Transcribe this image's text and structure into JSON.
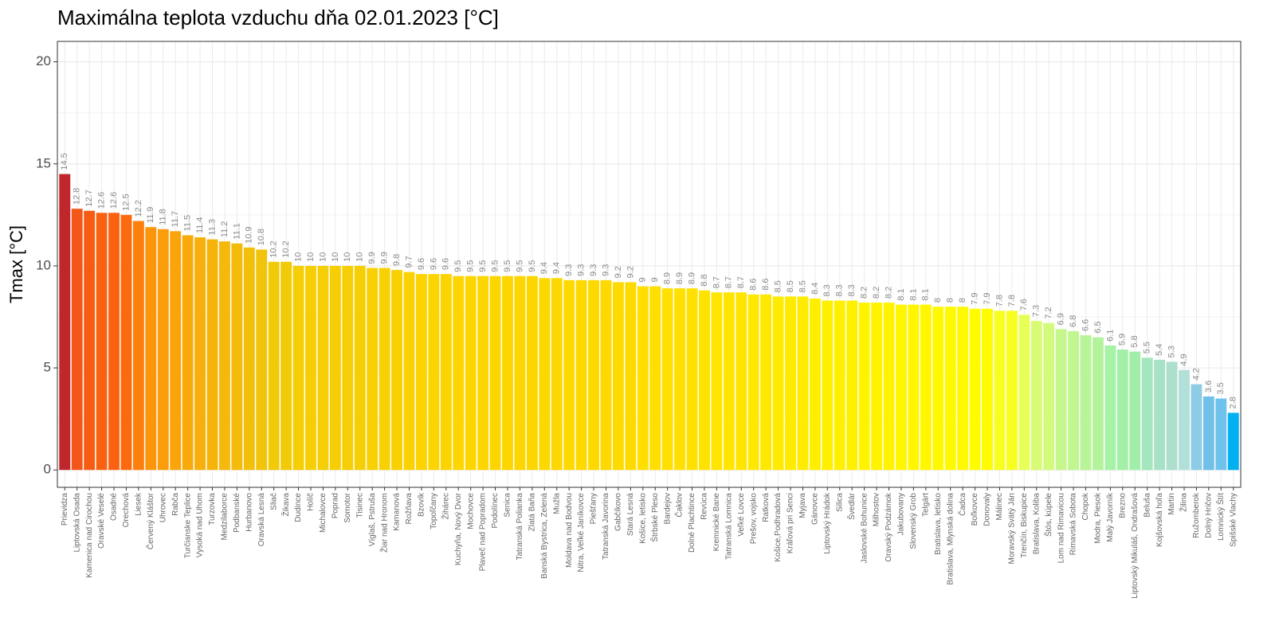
{
  "chart_data": {
    "type": "bar",
    "title": "Maximálna teplota vzduchu dňa 02.01.2023 [°C]",
    "y_label": "Tmax [°C]",
    "categories": [
      "Prievidza",
      "Liptovská Osada",
      "Kamenica nad Cirochou",
      "Oravské Veselé",
      "Osadné",
      "Orechová",
      "Liesek",
      "Červený Kláštor",
      "Uhrovec",
      "Rabča",
      "Turčianske Teplice",
      "Vysoká nad Uhom",
      "Turzovka",
      "Medzilaborce",
      "Podbanské",
      "Hurbanovo",
      "Oravská Lesná",
      "Sliač",
      "Žikava",
      "Dudince",
      "Holíč",
      "Michalovce",
      "Poprad",
      "Somotor",
      "Tisinec",
      "Víglaš, Pstruša",
      "Žiar nad Hronom",
      "Kamanová",
      "Rožňava",
      "Bzovík",
      "Topoľčany",
      "Žihárec",
      "Kuchyňa, Nový Dvor",
      "Mochovce",
      "Plaveč nad Popradom",
      "Podolínec",
      "Senica",
      "Tatranská Polianka",
      "Zlatá Baňa",
      "Banská Bystrica, Zelená",
      "Mužla",
      "Moldava nad Bodvou",
      "Nitra, Veľké Janíkovce",
      "Piešťany",
      "Tatranská Javorina",
      "Gabčíkovo",
      "Stará Lesná",
      "Košice, letisko",
      "Štrbské Pleso",
      "Bardejov",
      "Čaklov",
      "Dolné Plachtince",
      "Revúca",
      "Kremnické Bane",
      "Tatranská Lomnica",
      "Veľké Lovce",
      "Prešov, vojsko",
      "Ratková",
      "Košice,Podhradová",
      "Kráľová pri Senci",
      "Myjava",
      "Gánovce",
      "Liptovský Hrádok",
      "Silica",
      "Švedlár",
      "Jaslovské Bohunice",
      "Milhostov",
      "Oravský Podzámok",
      "Jakubovany",
      "Slovenský Grob",
      "Telgárt",
      "Bratislava, letisko",
      "Bratislava, Mlynská dolina",
      "Čadca",
      "Boľkovce",
      "Donovaly",
      "Málinec",
      "Moravský Svätý Ján",
      "Trenčín, Biskupice",
      "Bratislava, Koliba",
      "Štós, kúpele",
      "Lom nad Rimavicou",
      "Rimavská Sobota",
      "Chopok",
      "Modra, Piesok",
      "Malý Javorník",
      "Brezno",
      "Liptovský Mikuláš, Ondrašová",
      "Beluša",
      "Kojšovská hoľa",
      "Martin",
      "Žilina",
      "Ružomberok",
      "Dolný Hričov",
      "Lomnický Štít",
      "Spišské Vlachy"
    ],
    "values": [
      14.5,
      12.8,
      12.7,
      12.6,
      12.6,
      12.5,
      12.2,
      11.9,
      11.8,
      11.7,
      11.5,
      11.4,
      11.3,
      11.2,
      11.1,
      10.9,
      10.8,
      10.2,
      10.2,
      10,
      10,
      10,
      10,
      10,
      10,
      9.9,
      9.9,
      9.8,
      9.7,
      9.6,
      9.6,
      9.6,
      9.5,
      9.5,
      9.5,
      9.5,
      9.5,
      9.5,
      9.5,
      9.4,
      9.4,
      9.3,
      9.3,
      9.3,
      9.3,
      9.2,
      9.2,
      9,
      9,
      8.9,
      8.9,
      8.9,
      8.8,
      8.7,
      8.7,
      8.7,
      8.6,
      8.6,
      8.5,
      8.5,
      8.5,
      8.4,
      8.3,
      8.3,
      8.3,
      8.2,
      8.2,
      8.2,
      8.1,
      8.1,
      8.1,
      8,
      8,
      8,
      7.9,
      7.9,
      7.8,
      7.8,
      7.6,
      7.3,
      7.2,
      6.9,
      6.8,
      6.6,
      6.5,
      6.1,
      5.9,
      5.8,
      5.5,
      5.4,
      5.3,
      4.9,
      4.2,
      3.6,
      3.5,
      2.8
    ],
    "colors": [
      "#c0272d",
      "#f4561a",
      "#f75c15",
      "#fa6212",
      "#fa6212",
      "#fc6a0f",
      "#fd7f0c",
      "#fb950a",
      "#fb9c0a",
      "#faa30a",
      "#f8aa0b",
      "#f7b00b",
      "#f6b40b",
      "#f5b80b",
      "#f4bb0b",
      "#f2c00b",
      "#f1c30b",
      "#f3ca07",
      "#f3ca07",
      "#f6ce05",
      "#f6ce05",
      "#f6ce05",
      "#f6ce05",
      "#f6ce05",
      "#f6ce05",
      "#f8d004",
      "#f8d004",
      "#f9d103",
      "#fad203",
      "#fbd402",
      "#fbd402",
      "#fbd402",
      "#fdd600",
      "#fdd600",
      "#fdd600",
      "#fdd600",
      "#fdd600",
      "#fdd600",
      "#fdd600",
      "#fdd800",
      "#fdd800",
      "#fed900",
      "#fed900",
      "#fed900",
      "#fed900",
      "#fedb00",
      "#fedb00",
      "#ffde00",
      "#ffde00",
      "#ffe000",
      "#ffe000",
      "#ffe000",
      "#ffe300",
      "#ffe500",
      "#ffe500",
      "#ffe500",
      "#ffe800",
      "#ffe800",
      "#ffeb00",
      "#ffeb00",
      "#ffeb00",
      "#ffee00",
      "#fff000",
      "#fff000",
      "#fff000",
      "#fff300",
      "#fff300",
      "#fff300",
      "#fff600",
      "#fff600",
      "#fff600",
      "#fff900",
      "#fff900",
      "#fff900",
      "#fffc00",
      "#fffc00",
      "#f8ff20",
      "#f8ff20",
      "#e8ff55",
      "#d8fb75",
      "#d2fa7c",
      "#c6f78c",
      "#c1f690",
      "#b8f498",
      "#b3f39c",
      "#a6f2a6",
      "#a2f0a6",
      "#a0eeaa",
      "#a4e6be",
      "#a8e2c6",
      "#ace0cc",
      "#b2dfd8",
      "#8ecbe4",
      "#70c0ea",
      "#6ec2ec",
      "#00b0f0"
    ],
    "ylim": [
      -0.85,
      21.0
    ],
    "yticks": [
      0,
      5,
      10,
      15,
      20
    ],
    "grid": true
  }
}
